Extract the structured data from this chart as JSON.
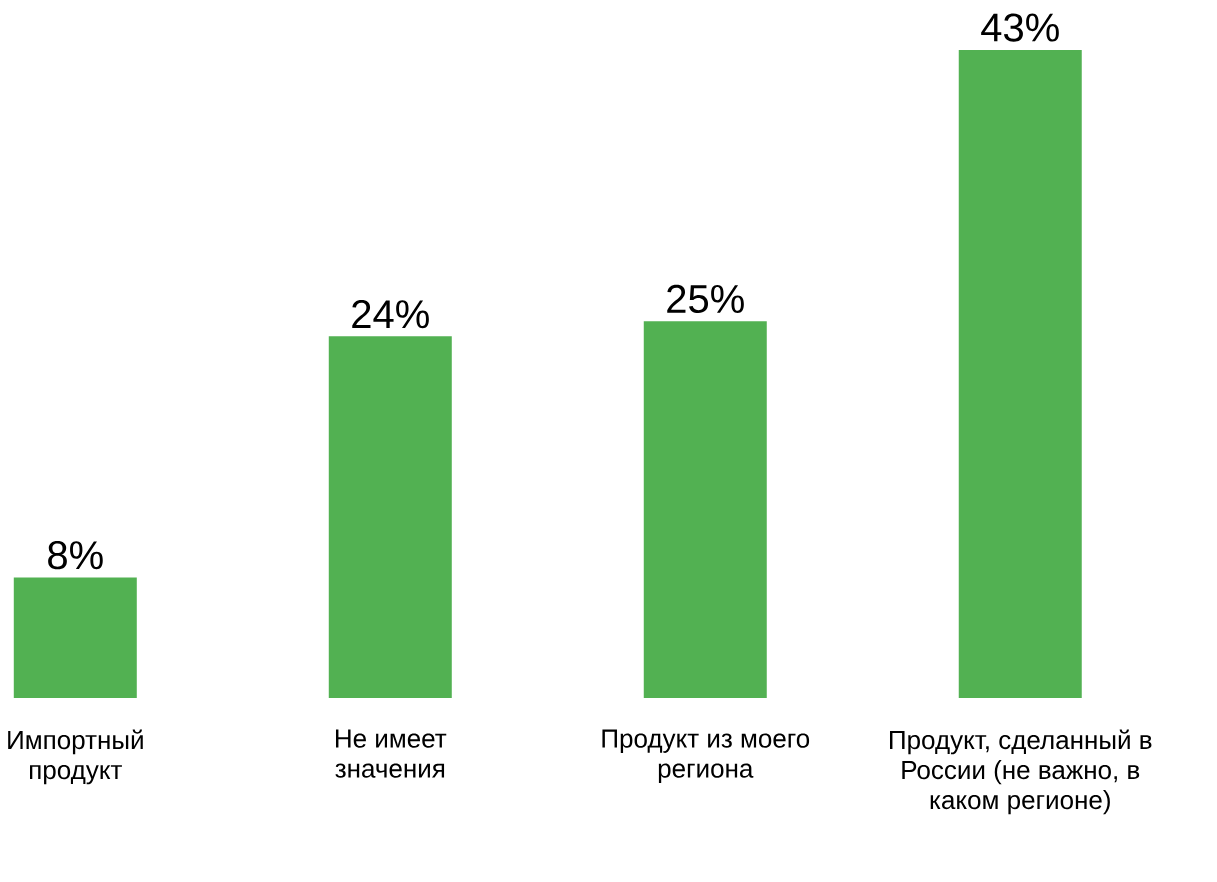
{
  "chart_data": {
    "type": "bar",
    "categories": [
      "Импортный продукт",
      "Не имеет значения",
      "Продукт из моего региона",
      "Продукт, сделанный в России (не важно, в каком регионе)"
    ],
    "values": [
      8,
      24,
      25,
      43
    ],
    "value_labels": [
      "8%",
      "24%",
      "25%",
      "43%"
    ],
    "color": "#52b152",
    "grid": false,
    "legend": false
  }
}
